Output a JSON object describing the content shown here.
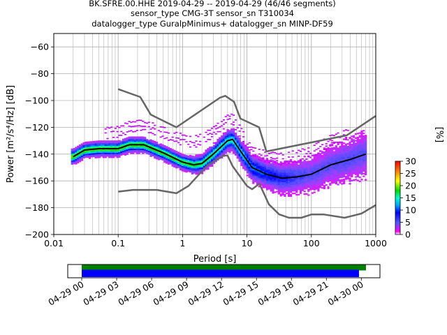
{
  "title_lines": [
    "BK.SFRE.00.HHE   2019-04-29 -- 2019-04-29  (46/46 segments)",
    "sensor_type CMG-3T sensor_sn T310034",
    "datalogger_type GuralpMinimus+ datalogger_sn MINP-DF59"
  ],
  "chart_data": [
    {
      "type": "heatmap",
      "title": "BK.SFRE.00.HHE   2019-04-29 -- 2019-04-29  (46/46 segments)",
      "xlabel": "Period [s]",
      "ylabel": "Power [m²/s⁴/Hz] [dB]",
      "xscale": "log",
      "xlim": [
        0.01,
        1000
      ],
      "ylim": [
        -200,
        -50
      ],
      "xtick_labels": [
        "0.01",
        "0.1",
        "1",
        "10",
        "100",
        "1000"
      ],
      "ytick_labels": [
        "−60",
        "−80",
        "−100",
        "−120",
        "−140",
        "−160",
        "−180",
        "−200"
      ],
      "grid": true,
      "colorbar": {
        "label": "[%]",
        "range": [
          0,
          30
        ],
        "tick_labels": [
          "0",
          "5",
          "10",
          "15",
          "20",
          "25",
          "30"
        ],
        "colormap": "pqlx"
      },
      "series": [
        {
          "name": "",
          "role": "mean PSD",
          "color": "#000000",
          "points": [
            [
              0.02,
              -142
            ],
            [
              0.03,
              -137
            ],
            [
              0.05,
              -136
            ],
            [
              0.1,
              -136
            ],
            [
              0.15,
              -133
            ],
            [
              0.25,
              -133
            ],
            [
              0.5,
              -139
            ],
            [
              1,
              -146
            ],
            [
              1.5,
              -148
            ],
            [
              2,
              -147
            ],
            [
              3,
              -140
            ],
            [
              5,
              -130
            ],
            [
              6,
              -129
            ],
            [
              8,
              -138
            ],
            [
              12,
              -150
            ],
            [
              20,
              -155
            ],
            [
              35,
              -158
            ],
            [
              60,
              -157
            ],
            [
              100,
              -155
            ],
            [
              200,
              -148
            ],
            [
              400,
              -144
            ],
            [
              700,
              -140
            ]
          ]
        },
        {
          "name": "",
          "role": "NHNM",
          "color": "#666666",
          "points": [
            [
              0.1,
              -91.5
            ],
            [
              0.22,
              -97.4
            ],
            [
              0.32,
              -110.5
            ],
            [
              0.8,
              -120
            ],
            [
              3.8,
              -97.9
            ],
            [
              4.6,
              -96.5
            ],
            [
              6.3,
              -101
            ],
            [
              7.9,
              -113.5
            ],
            [
              15.4,
              -120
            ],
            [
              20,
              -138
            ],
            [
              354.8,
              -126
            ],
            [
              1000,
              -111.5
            ]
          ]
        },
        {
          "name": "",
          "role": "NLNM",
          "color": "#666666",
          "points": [
            [
              0.1,
              -168
            ],
            [
              0.17,
              -166.7
            ],
            [
              0.4,
              -166.7
            ],
            [
              0.8,
              -169.2
            ],
            [
              1.24,
              -163.7
            ],
            [
              2.4,
              -148.6
            ],
            [
              4.3,
              -141.1
            ],
            [
              5,
              -141.1
            ],
            [
              6,
              -149
            ],
            [
              10,
              -163.8
            ],
            [
              12,
              -166.2
            ],
            [
              15.6,
              -162.1
            ],
            [
              21.9,
              -177.5
            ],
            [
              31.6,
              -185
            ],
            [
              45,
              -187.5
            ],
            [
              70,
              -187.5
            ],
            [
              101,
              -185
            ],
            [
              154,
              -185
            ],
            [
              328,
              -187.5
            ],
            [
              600,
              -184.4
            ],
            [
              1000,
              -178
            ]
          ]
        }
      ]
    },
    {
      "type": "bar",
      "role": "data coverage",
      "x_tick_labels": [
        "04-29 00",
        "04-29 03",
        "04-29 06",
        "04-29 09",
        "04-29 12",
        "04-29 15",
        "04-29 18",
        "04-29 21",
        "04-30 00"
      ],
      "xlim_hours": [
        -1.2,
        25.6
      ],
      "series": [
        {
          "name": "",
          "color": "#008000",
          "start_hour": 0,
          "end_hour": 24.4
        },
        {
          "name": "",
          "color": "#0000ff",
          "start_hour": 0,
          "end_hour": 23.8
        }
      ]
    }
  ]
}
